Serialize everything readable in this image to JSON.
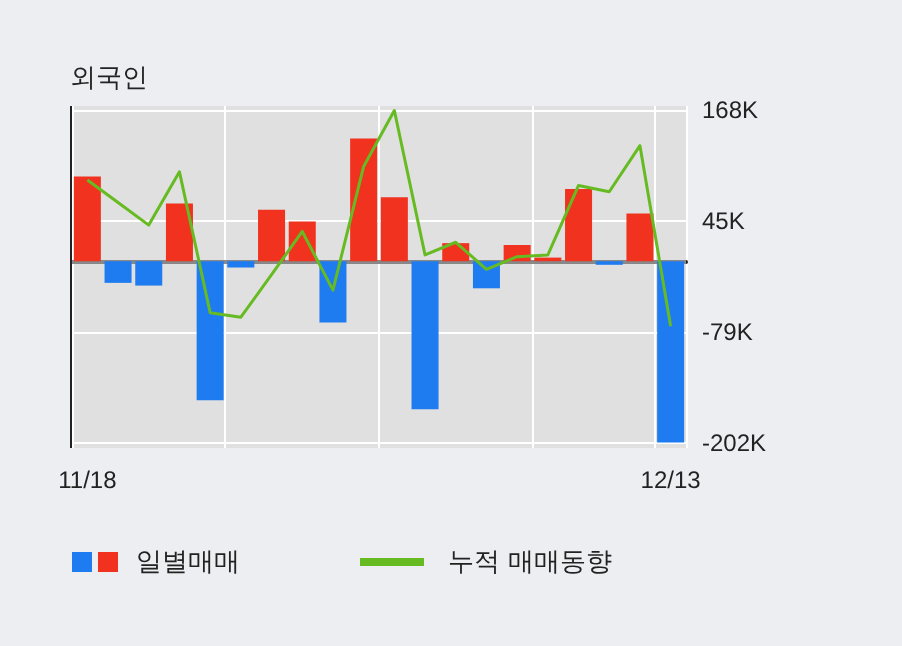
{
  "chart_data": {
    "type": "bar",
    "title": "외국인",
    "categories": [
      "11/18",
      null,
      null,
      null,
      null,
      null,
      null,
      null,
      null,
      null,
      null,
      null,
      null,
      null,
      null,
      null,
      null,
      null,
      null,
      "12/13"
    ],
    "series": [
      {
        "name": "일별매매",
        "colors": [
          "#f0321e",
          "#1f7cf0",
          "#1f7cf0",
          "#f0321e",
          "#1f7cf0",
          "#1f7cf0",
          "#f0321e",
          "#f0321e",
          "#1f7cf0",
          "#f0321e",
          "#f0321e",
          "#1f7cf0",
          "#f0321e",
          "#1f7cf0",
          "#f0321e",
          "#f0321e",
          "#f0321e",
          "#1f7cf0",
          "#f0321e",
          "#1f7cf0"
        ],
        "values": [
          94,
          -24,
          -27,
          64,
          -154,
          -7,
          57,
          44,
          -68,
          136,
          71,
          -164,
          20,
          -30,
          18,
          4,
          80,
          -4,
          53,
          -201
        ]
      },
      {
        "name": "누적 매매동향",
        "type": "line",
        "color": "#66bb22",
        "values": [
          90,
          65,
          40,
          99,
          -57,
          -62,
          -15,
          33,
          -32,
          105,
          167,
          7,
          21,
          -9,
          5,
          7,
          84,
          77,
          128,
          -72
        ]
      }
    ],
    "ylim": [
      -207,
      172
    ],
    "yticks": [
      {
        "value": 168,
        "label": "168K"
      },
      {
        "value": 45,
        "label": "45K"
      },
      {
        "value": -79,
        "label": "-79K"
      },
      {
        "value": -202,
        "label": "-202K"
      }
    ],
    "grid": true,
    "legend": "bottom",
    "marker": "none"
  }
}
